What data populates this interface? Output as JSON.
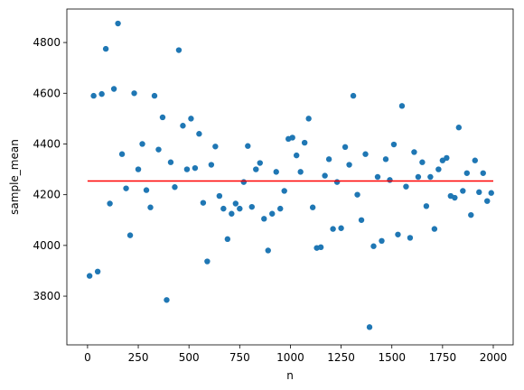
{
  "chart_data": {
    "type": "scatter",
    "xlabel": "n",
    "ylabel": "sample_mean",
    "xlim": [
      -102,
      2098
    ],
    "ylim": [
      3608,
      4932
    ],
    "xticks": [
      0,
      250,
      500,
      750,
      1000,
      1250,
      1500,
      1750,
      2000
    ],
    "yticks": [
      3800,
      4000,
      4200,
      4400,
      4600,
      4800
    ],
    "series": [
      {
        "color": "#1f77b4",
        "x": [
          10,
          30,
          50,
          70,
          90,
          110,
          130,
          150,
          170,
          190,
          210,
          230,
          250,
          270,
          290,
          310,
          330,
          350,
          370,
          390,
          410,
          430,
          450,
          470,
          490,
          510,
          530,
          550,
          570,
          590,
          610,
          630,
          650,
          670,
          690,
          710,
          730,
          750,
          770,
          790,
          810,
          830,
          850,
          870,
          890,
          910,
          930,
          950,
          970,
          990,
          1010,
          1030,
          1050,
          1070,
          1090,
          1110,
          1130,
          1150,
          1170,
          1190,
          1210,
          1230,
          1250,
          1270,
          1290,
          1310,
          1330,
          1350,
          1370,
          1390,
          1410,
          1430,
          1450,
          1470,
          1490,
          1510,
          1530,
          1550,
          1570,
          1590,
          1610,
          1630,
          1650,
          1670,
          1690,
          1710,
          1730,
          1750,
          1770,
          1790,
          1810,
          1830,
          1850,
          1870,
          1890,
          1910,
          1930,
          1950,
          1970,
          1990
        ],
        "values": [
          3880,
          4590,
          3897,
          4597,
          4775,
          4165,
          4617,
          4875,
          4360,
          4225,
          4040,
          4600,
          4300,
          4400,
          4218,
          4150,
          4590,
          4378,
          4505,
          3785,
          4328,
          4230,
          4770,
          4472,
          4300,
          4500,
          4305,
          4440,
          4168,
          3937,
          4318,
          4390,
          4195,
          4145,
          4025,
          4125,
          4165,
          4145,
          4250,
          4392,
          4152,
          4300,
          4325,
          4105,
          3980,
          4125,
          4290,
          4145,
          4215,
          4420,
          4425,
          4355,
          4290,
          4405,
          4500,
          4150,
          3990,
          3993,
          4275,
          4340,
          4065,
          4250,
          4068,
          4388,
          4318,
          4590,
          4200,
          4100,
          4360,
          3678,
          3997,
          4270,
          4018,
          4340,
          4258,
          4398,
          4043,
          4550,
          4232,
          4030,
          4368,
          4270,
          4328,
          4155,
          4270,
          4065,
          4300,
          4335,
          4345,
          4195,
          4188,
          4465,
          4215,
          4285,
          4120,
          4335,
          4210,
          4285,
          4175,
          4207
        ]
      }
    ],
    "lines": [
      {
        "color": "red",
        "x": [
          0,
          2000
        ],
        "values": [
          4254,
          4254
        ]
      }
    ]
  }
}
